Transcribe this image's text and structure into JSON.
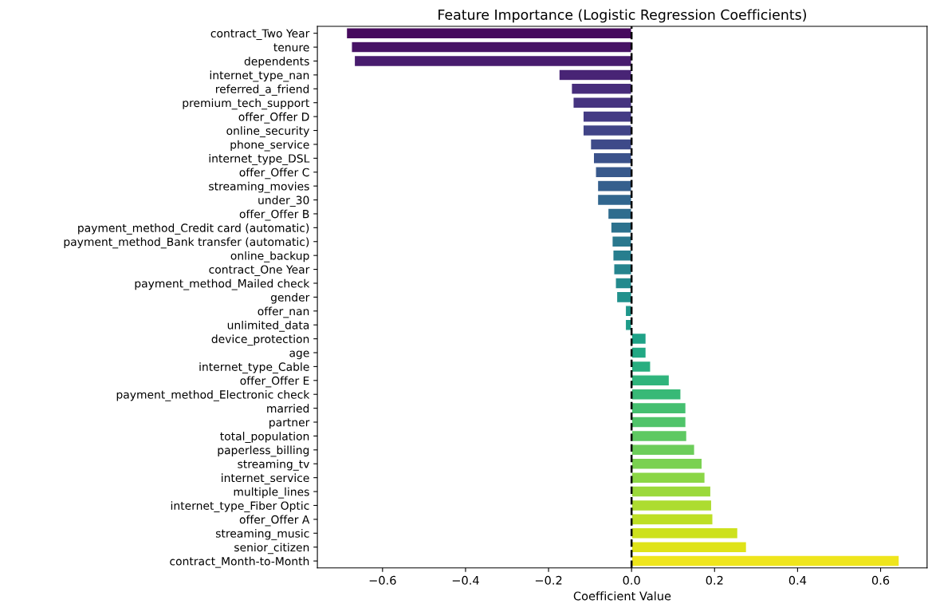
{
  "chart_data": {
    "type": "bar",
    "orientation": "horizontal",
    "title": "Feature Importance (Logistic Regression Coefficients)",
    "xlabel": "Coefficient Value",
    "categories": [
      "contract_Two Year",
      "tenure",
      "dependents",
      "internet_type_nan",
      "referred_a_friend",
      "premium_tech_support",
      "offer_Offer D",
      "online_security",
      "phone_service",
      "internet_type_DSL",
      "offer_Offer C",
      "streaming_movies",
      "under_30",
      "offer_Offer B",
      "payment_method_Credit card (automatic)",
      "payment_method_Bank transfer (automatic)",
      "online_backup",
      "contract_One Year",
      "payment_method_Mailed check",
      "gender",
      "offer_nan",
      "unlimited_data",
      "device_protection",
      "age",
      "internet_type_Cable",
      "offer_Offer E",
      "payment_method_Electronic check",
      "married",
      "partner",
      "total_population",
      "paperless_billing",
      "streaming_tv",
      "internet_service",
      "multiple_lines",
      "internet_type_Fiber Optic",
      "offer_Offer A",
      "streaming_music",
      "senior_citizen",
      "contract_Month-to-Month"
    ],
    "values": [
      -0.687,
      -0.675,
      -0.668,
      -0.175,
      -0.145,
      -0.141,
      -0.117,
      -0.117,
      -0.099,
      -0.092,
      -0.087,
      -0.082,
      -0.082,
      -0.057,
      -0.05,
      -0.047,
      -0.045,
      -0.043,
      -0.039,
      -0.036,
      -0.015,
      -0.015,
      0.035,
      0.035,
      0.046,
      0.091,
      0.119,
      0.131,
      0.131,
      0.133,
      0.152,
      0.17,
      0.177,
      0.191,
      0.193,
      0.196,
      0.256,
      0.277,
      0.645
    ],
    "colors": [
      "#460a5d",
      "#471365",
      "#481c6e",
      "#482475",
      "#472d7b",
      "#463480",
      "#443b84",
      "#414487",
      "#3e4a89",
      "#3b528b",
      "#38598c",
      "#355f8d",
      "#31668e",
      "#2f6c8e",
      "#2c728e",
      "#2a788e",
      "#277e8e",
      "#25848e",
      "#238a8d",
      "#21918c",
      "#1f968b",
      "#1e9c89",
      "#1fa287",
      "#22a884",
      "#28ae80",
      "#2fb47c",
      "#38b977",
      "#44bf70",
      "#50c46a",
      "#5ec962",
      "#6ccd5a",
      "#7ad151",
      "#8bd646",
      "#9bd93c",
      "#addc30",
      "#bddf26",
      "#cde11d",
      "#dfe318",
      "#efe51c"
    ],
    "xlim": [
      -0.757,
      0.712
    ],
    "xticks": [
      {
        "value": -0.6,
        "label": "−0.6"
      },
      {
        "value": -0.4,
        "label": "−0.4"
      },
      {
        "value": -0.2,
        "label": "−0.2"
      },
      {
        "value": 0,
        "label": "0.0"
      },
      {
        "value": 0.2,
        "label": "0.2"
      },
      {
        "value": 0.4,
        "label": "0.4"
      },
      {
        "value": 0.6,
        "label": "0.6"
      }
    ],
    "ref_lines": [
      {
        "axis": "x",
        "value": 0,
        "color": "#000000",
        "line_style": "dashed"
      }
    ],
    "grid": false
  }
}
